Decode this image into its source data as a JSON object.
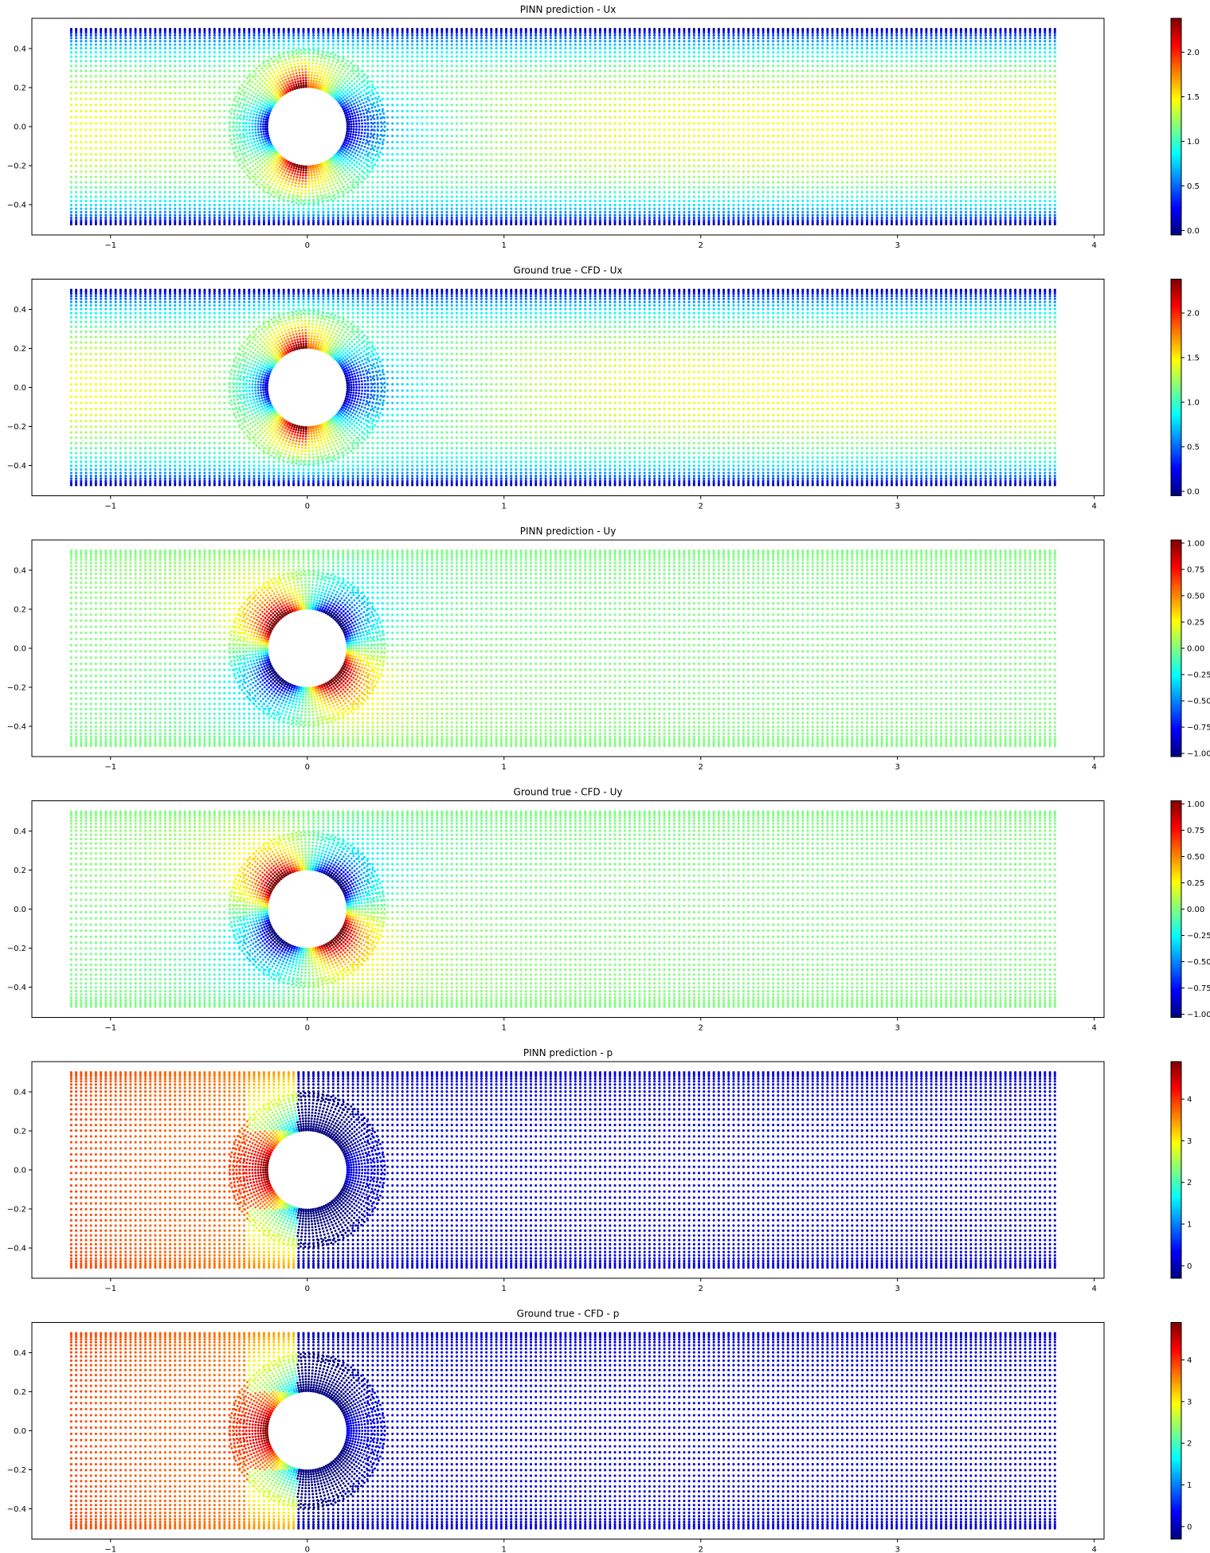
{
  "colors": {
    "colormap": "jet",
    "jet_stops": [
      "#00007f",
      "#0000ff",
      "#007fff",
      "#00ffff",
      "#7fff7f",
      "#ffff00",
      "#ff7f00",
      "#ff0000",
      "#7f0000"
    ],
    "background": "#ffffff",
    "axes": "#000000"
  },
  "chart_data": [
    {
      "type": "scatter",
      "title": "PINN prediction - Ux",
      "field": "ux",
      "xlim": [
        -1.4,
        4.05
      ],
      "ylim": [
        -0.555,
        0.555
      ],
      "xticks": [
        -1,
        0,
        1,
        2,
        3,
        4
      ],
      "xtick_labels": [
        "−1",
        "0",
        "1",
        "2",
        "3",
        "4"
      ],
      "yticks": [
        -0.4,
        -0.2,
        0.0,
        0.2,
        0.4
      ],
      "ytick_labels": [
        "−0.4",
        "−0.2",
        "0.0",
        "0.2",
        "0.4"
      ],
      "domain": {
        "x": [
          -1.2,
          3.8
        ],
        "y": [
          -0.5,
          0.5
        ]
      },
      "cylinder": {
        "center": [
          0,
          0
        ],
        "radius": 0.2
      },
      "colorbar": {
        "vmin": -0.05,
        "vmax": 2.38,
        "ticks": [
          0.0,
          0.5,
          1.0,
          1.5,
          2.0
        ],
        "tick_labels": [
          "0.0",
          "0.5",
          "1.0",
          "1.5",
          "2.0"
        ]
      }
    },
    {
      "type": "scatter",
      "title": "Ground true - CFD - Ux",
      "field": "ux",
      "xlim": [
        -1.4,
        4.05
      ],
      "ylim": [
        -0.555,
        0.555
      ],
      "xticks": [
        -1,
        0,
        1,
        2,
        3,
        4
      ],
      "xtick_labels": [
        "−1",
        "0",
        "1",
        "2",
        "3",
        "4"
      ],
      "yticks": [
        -0.4,
        -0.2,
        0.0,
        0.2,
        0.4
      ],
      "ytick_labels": [
        "−0.4",
        "−0.2",
        "0.0",
        "0.2",
        "0.4"
      ],
      "domain": {
        "x": [
          -1.2,
          3.8
        ],
        "y": [
          -0.5,
          0.5
        ]
      },
      "cylinder": {
        "center": [
          0,
          0
        ],
        "radius": 0.2
      },
      "colorbar": {
        "vmin": -0.05,
        "vmax": 2.38,
        "ticks": [
          0.0,
          0.5,
          1.0,
          1.5,
          2.0
        ],
        "tick_labels": [
          "0.0",
          "0.5",
          "1.0",
          "1.5",
          "2.0"
        ]
      }
    },
    {
      "type": "scatter",
      "title": "PINN prediction - Uy",
      "field": "uy",
      "xlim": [
        -1.4,
        4.05
      ],
      "ylim": [
        -0.555,
        0.555
      ],
      "xticks": [
        -1,
        0,
        1,
        2,
        3,
        4
      ],
      "xtick_labels": [
        "−1",
        "0",
        "1",
        "2",
        "3",
        "4"
      ],
      "yticks": [
        -0.4,
        -0.2,
        0.0,
        0.2,
        0.4
      ],
      "ytick_labels": [
        "−0.4",
        "−0.2",
        "0.0",
        "0.2",
        "0.4"
      ],
      "domain": {
        "x": [
          -1.2,
          3.8
        ],
        "y": [
          -0.5,
          0.5
        ]
      },
      "cylinder": {
        "center": [
          0,
          0
        ],
        "radius": 0.2
      },
      "colorbar": {
        "vmin": -1.03,
        "vmax": 1.03,
        "ticks": [
          -1.0,
          -0.75,
          -0.5,
          -0.25,
          0.0,
          0.25,
          0.5,
          0.75,
          1.0
        ],
        "tick_labels": [
          "−1.00",
          "−0.75",
          "−0.50",
          "−0.25",
          "0.00",
          "0.25",
          "0.50",
          "0.75",
          "1.00"
        ]
      }
    },
    {
      "type": "scatter",
      "title": "Ground true - CFD - Uy",
      "field": "uy",
      "xlim": [
        -1.4,
        4.05
      ],
      "ylim": [
        -0.555,
        0.555
      ],
      "xticks": [
        -1,
        0,
        1,
        2,
        3,
        4
      ],
      "xtick_labels": [
        "−1",
        "0",
        "1",
        "2",
        "3",
        "4"
      ],
      "yticks": [
        -0.4,
        -0.2,
        0.0,
        0.2,
        0.4
      ],
      "ytick_labels": [
        "−0.4",
        "−0.2",
        "0.0",
        "0.2",
        "0.4"
      ],
      "domain": {
        "x": [
          -1.2,
          3.8
        ],
        "y": [
          -0.5,
          0.5
        ]
      },
      "cylinder": {
        "center": [
          0,
          0
        ],
        "radius": 0.2
      },
      "colorbar": {
        "vmin": -1.03,
        "vmax": 1.03,
        "ticks": [
          -1.0,
          -0.75,
          -0.5,
          -0.25,
          0.0,
          0.25,
          0.5,
          0.75,
          1.0
        ],
        "tick_labels": [
          "−1.00",
          "−0.75",
          "−0.50",
          "−0.25",
          "0.00",
          "0.25",
          "0.50",
          "0.75",
          "1.00"
        ]
      }
    },
    {
      "type": "scatter",
      "title": "PINN prediction - p",
      "field": "p",
      "xlim": [
        -1.4,
        4.05
      ],
      "ylim": [
        -0.555,
        0.555
      ],
      "xticks": [
        -1,
        0,
        1,
        2,
        3,
        4
      ],
      "xtick_labels": [
        "−1",
        "0",
        "1",
        "2",
        "3",
        "4"
      ],
      "yticks": [
        -0.4,
        -0.2,
        0.0,
        0.2,
        0.4
      ],
      "ytick_labels": [
        "−0.4",
        "−0.2",
        "0.0",
        "0.2",
        "0.4"
      ],
      "domain": {
        "x": [
          -1.2,
          3.8
        ],
        "y": [
          -0.5,
          0.5
        ]
      },
      "cylinder": {
        "center": [
          0,
          0
        ],
        "radius": 0.2
      },
      "colorbar": {
        "vmin": -0.3,
        "vmax": 4.9,
        "ticks": [
          0,
          1,
          2,
          3,
          4
        ],
        "tick_labels": [
          "0",
          "1",
          "2",
          "3",
          "4"
        ]
      }
    },
    {
      "type": "scatter",
      "title": "Ground true - CFD - p",
      "field": "p",
      "xlim": [
        -1.4,
        4.05
      ],
      "ylim": [
        -0.555,
        0.555
      ],
      "xticks": [
        -1,
        0,
        1,
        2,
        3,
        4
      ],
      "xtick_labels": [
        "−1",
        "0",
        "1",
        "2",
        "3",
        "4"
      ],
      "yticks": [
        -0.4,
        -0.2,
        0.0,
        0.2,
        0.4
      ],
      "ytick_labels": [
        "−0.4",
        "−0.2",
        "0.0",
        "0.2",
        "0.4"
      ],
      "domain": {
        "x": [
          -1.2,
          3.8
        ],
        "y": [
          -0.5,
          0.5
        ]
      },
      "cylinder": {
        "center": [
          0,
          0
        ],
        "radius": 0.2
      },
      "colorbar": {
        "vmin": -0.3,
        "vmax": 4.9,
        "ticks": [
          0,
          1,
          2,
          3,
          4
        ],
        "tick_labels": [
          "0",
          "1",
          "2",
          "3",
          "4"
        ]
      }
    }
  ]
}
